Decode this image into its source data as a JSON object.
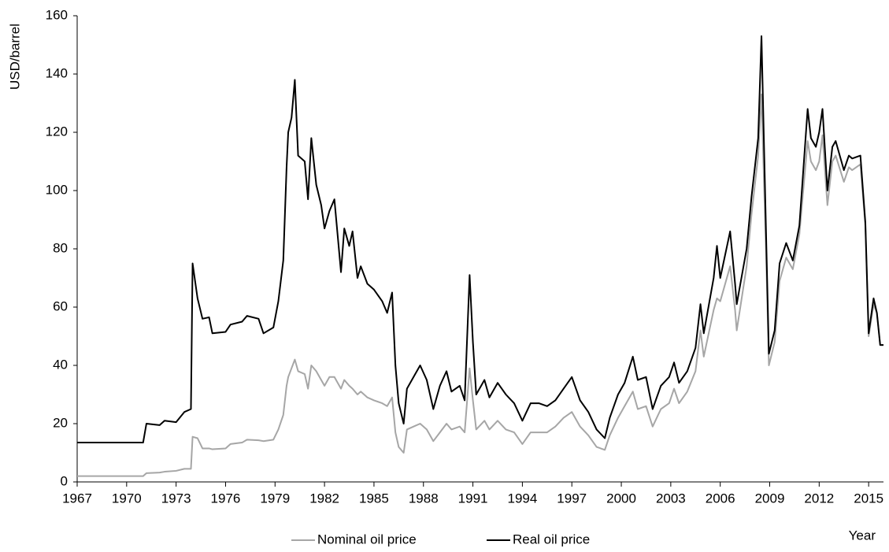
{
  "chart_data": {
    "type": "line",
    "y_label": "USD/barrel",
    "x_label": "Year",
    "x": [
      1967,
      1971,
      1971.2,
      1972,
      1972.3,
      1973,
      1973.5,
      1973.9,
      1974,
      1974.3,
      1974.6,
      1975,
      1975.2,
      1976,
      1976.3,
      1977,
      1977.3,
      1978,
      1978.3,
      1978.9,
      1979.2,
      1979.5,
      1979.7,
      1979.8,
      1980,
      1980.2,
      1980.4,
      1980.8,
      1981,
      1981.2,
      1981.5,
      1981.8,
      1982,
      1982.3,
      1982.6,
      1983,
      1983.2,
      1983.5,
      1983.7,
      1984,
      1984.2,
      1984.6,
      1985,
      1985.5,
      1985.8,
      1986.1,
      1986.3,
      1986.5,
      1986.8,
      1987,
      1987.4,
      1987.8,
      1988.2,
      1988.6,
      1989,
      1989.4,
      1989.7,
      1990.2,
      1990.5,
      1990.8,
      1991,
      1991.2,
      1991.7,
      1992,
      1992.5,
      1993,
      1993.5,
      1994,
      1994.5,
      1995,
      1995.5,
      1996,
      1996.5,
      1997,
      1997.5,
      1998,
      1998.5,
      1999,
      1999.3,
      1999.8,
      2000.2,
      2000.7,
      2001,
      2001.5,
      2001.9,
      2002.4,
      2002.9,
      2003.2,
      2003.5,
      2004,
      2004.5,
      2004.8,
      2005,
      2005.6,
      2005.8,
      2006,
      2006.6,
      2006.9,
      2007,
      2007.6,
      2007.9,
      2008.3,
      2008.5,
      2008.8,
      2008.95,
      2009.3,
      2009.6,
      2010,
      2010.4,
      2010.8,
      2011.3,
      2011.5,
      2011.8,
      2012,
      2012.2,
      2012.5,
      2012.8,
      2013,
      2013.5,
      2013.8,
      2014,
      2014.5,
      2014.8,
      2015,
      2015.3,
      2015.5,
      2015.7,
      2015.9
    ],
    "series": [
      {
        "name": "Nominal oil price",
        "color": "#a6a6a6",
        "values": [
          2,
          2,
          3,
          3.2,
          3.5,
          3.8,
          4.5,
          4.5,
          15.5,
          15,
          11.5,
          11.5,
          11.2,
          11.5,
          13,
          13.5,
          14.5,
          14.3,
          14,
          14.5,
          18,
          23,
          33,
          36,
          39,
          42,
          38,
          37,
          32,
          40,
          38,
          35,
          33,
          36,
          36,
          32,
          35,
          33,
          32,
          30,
          31,
          29,
          28,
          27,
          26,
          29,
          17,
          12,
          10,
          18,
          19,
          20,
          18,
          14,
          17,
          20,
          18,
          19,
          17,
          39,
          28,
          18,
          21,
          18,
          21,
          18,
          17,
          13,
          17,
          17,
          17,
          19,
          22,
          24,
          19,
          16,
          12,
          11,
          16,
          22,
          26,
          31,
          25,
          26,
          19,
          25,
          27,
          32,
          27,
          31,
          38,
          52,
          43,
          59,
          63,
          62,
          74,
          59,
          52,
          74,
          92,
          112,
          133,
          74,
          40,
          48,
          69,
          77,
          73,
          85,
          117,
          110,
          107,
          110,
          119,
          95,
          110,
          112,
          103,
          108,
          107,
          109,
          88,
          50,
          61,
          58,
          47,
          47
        ]
      },
      {
        "name": "Real oil price",
        "color": "#000000",
        "values": [
          13.5,
          13.5,
          20,
          19.5,
          21,
          20.5,
          24,
          25,
          75,
          63,
          56,
          56.5,
          51,
          51.5,
          54,
          55,
          57,
          56,
          51,
          53,
          62,
          76,
          108,
          120,
          125,
          138,
          112,
          110,
          97,
          118,
          102,
          95,
          87,
          93,
          97,
          72,
          87,
          81,
          86,
          70,
          74,
          68,
          66,
          62,
          58,
          65,
          40,
          27,
          20,
          32,
          36,
          40,
          35,
          25,
          33,
          38,
          31,
          33,
          28,
          71,
          48,
          30,
          35,
          29,
          34,
          30,
          27,
          21,
          27,
          27,
          26,
          28,
          32,
          36,
          28,
          24,
          18,
          15,
          22,
          30,
          34,
          43,
          35,
          36,
          25,
          33,
          36,
          41,
          34,
          38,
          46,
          61,
          51,
          70,
          81,
          70,
          86,
          68,
          61,
          80,
          98,
          118,
          153,
          80,
          44,
          52,
          75,
          82,
          76,
          88,
          128,
          118,
          115,
          120,
          128,
          100,
          115,
          117,
          107,
          112,
          111,
          112,
          89,
          51,
          63,
          58,
          47,
          47
        ]
      }
    ],
    "xlim": [
      1967,
      2015.9
    ],
    "xticks": [
      1967,
      1970,
      1973,
      1976,
      1979,
      1982,
      1985,
      1988,
      1991,
      1994,
      1997,
      2000,
      2003,
      2006,
      2009,
      2012,
      2015
    ],
    "ylim": [
      0,
      160
    ],
    "yticks": [
      0,
      20,
      40,
      60,
      80,
      100,
      120,
      140,
      160
    ],
    "grid": false,
    "legend": "bottom"
  }
}
